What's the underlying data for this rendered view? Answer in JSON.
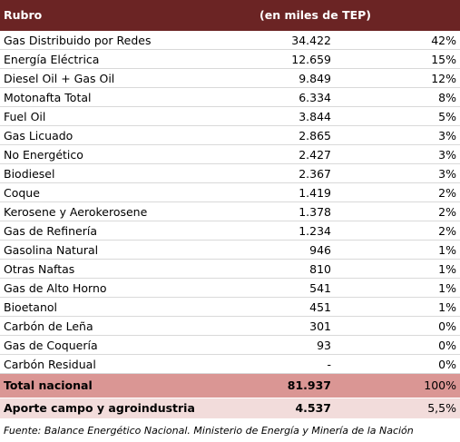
{
  "header": {
    "rubro": "Rubro",
    "unit": "(en miles de TEP)"
  },
  "rows": [
    {
      "name": "Gas Distribuido por Redes",
      "value": "34.422",
      "pct": "42%"
    },
    {
      "name": "Energía Eléctrica",
      "value": "12.659",
      "pct": "15%"
    },
    {
      "name": "Diesel Oil + Gas Oil",
      "value": "9.849",
      "pct": "12%"
    },
    {
      "name": "Motonafta Total",
      "value": "6.334",
      "pct": "8%"
    },
    {
      "name": "Fuel Oil",
      "value": "3.844",
      "pct": "5%"
    },
    {
      "name": "Gas Licuado",
      "value": "2.865",
      "pct": "3%"
    },
    {
      "name": "No Energético",
      "value": "2.427",
      "pct": "3%"
    },
    {
      "name": "Biodiesel",
      "value": "2.367",
      "pct": "3%"
    },
    {
      "name": "Coque",
      "value": "1.419",
      "pct": "2%"
    },
    {
      "name": "Kerosene y Aerokerosene",
      "value": "1.378",
      "pct": "2%"
    },
    {
      "name": "Gas de Refinería",
      "value": "1.234",
      "pct": "2%"
    },
    {
      "name": "Gasolina Natural",
      "value": "946",
      "pct": "1%"
    },
    {
      "name": "Otras Naftas",
      "value": "810",
      "pct": "1%"
    },
    {
      "name": "Gas de Alto Horno",
      "value": "541",
      "pct": "1%"
    },
    {
      "name": "Bioetanol",
      "value": "451",
      "pct": "1%"
    },
    {
      "name": "Carbón de Leña",
      "value": "301",
      "pct": "0%"
    },
    {
      "name": "Gas de Coquería",
      "value": "93",
      "pct": "0%"
    },
    {
      "name": "Carbón Residual",
      "value": "-",
      "pct": "0%"
    }
  ],
  "total": {
    "name": "Total nacional",
    "value": "81.937",
    "pct": "100%"
  },
  "aporte": {
    "name": "Aporte campo y agroindustria",
    "value": "4.537",
    "pct": "5,5%"
  },
  "footnote": "Fuente: Balance Energético Nacional. Ministerio de Energía y Minería de la Nación",
  "colors": {
    "header_bg": "#6b2424",
    "total_bg": "#da9694",
    "aporte_bg": "#f2dcdb"
  }
}
